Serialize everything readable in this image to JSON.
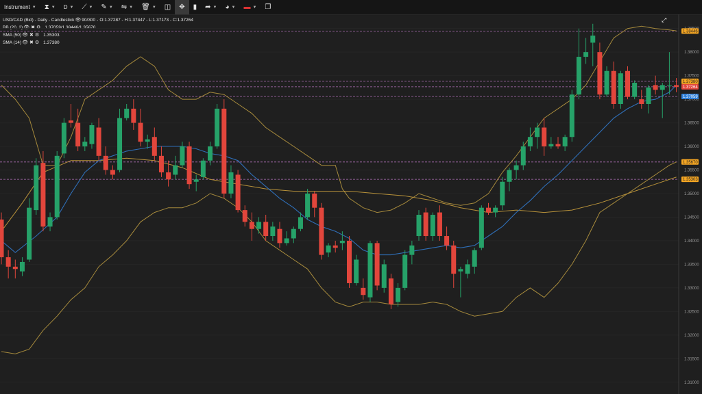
{
  "toolbar": {
    "instrument_label": "Instrument",
    "timeframe_label": "D"
  },
  "legend": {
    "title": "USD/CAD (Bid) - Daily - Candlestick",
    "bars": "90/300",
    "ohlc": "O:1.37287 - H:1.37447 - L:1.37173 - C:1.37264",
    "indicators": [
      {
        "name": "BB (20, 2)",
        "value": "1.37059/1.38446/1.35670"
      },
      {
        "name": "SMA (50)",
        "value": "1.35303"
      },
      {
        "name": "SMA (14)",
        "value": "1.37380"
      }
    ]
  },
  "colors": {
    "bull": "#26a269",
    "bear": "#e2463c",
    "bb": "#a68a3c",
    "sma50": "#b8923a",
    "sma14": "#2f6fb8",
    "hline": "#b070b8",
    "tag_orange": "#f5a623",
    "tag_red": "#e2463c",
    "tag_blue": "#2f7fd8"
  },
  "chart_data": {
    "type": "candlestick",
    "title": "USD/CAD (Bid) - Daily - Candlestick",
    "ylim": [
      1.3075,
      1.388
    ],
    "y_ticks": [
      "1.38500",
      "1.38000",
      "1.37500",
      "1.37000",
      "1.36500",
      "1.36000",
      "1.35500",
      "1.35000",
      "1.34500",
      "1.34000",
      "1.33500",
      "1.33000",
      "1.32500",
      "1.32000",
      "1.31500",
      "1.31000"
    ],
    "horizontal_lines": [
      1.38446,
      1.3738,
      1.37264,
      1.37059,
      1.3567,
      1.35303
    ],
    "price_tags": [
      {
        "label": "1.38446",
        "value": 1.38446,
        "color": "orange"
      },
      {
        "label": "1.37380",
        "value": 1.3738,
        "color": "orange"
      },
      {
        "label": "1.37264",
        "value": 1.37264,
        "color": "red"
      },
      {
        "label": "1.37059",
        "value": 1.37059,
        "color": "blue"
      },
      {
        "label": "1.35670",
        "value": 1.3567,
        "color": "orange"
      },
      {
        "label": "1.35303",
        "value": 1.35303,
        "color": "orange"
      }
    ],
    "candles": [
      [
        1.3445,
        1.346,
        1.335,
        1.3365
      ],
      [
        1.3365,
        1.338,
        1.332,
        1.3345
      ],
      [
        1.3345,
        1.336,
        1.332,
        1.334
      ],
      [
        1.3335,
        1.3365,
        1.3325,
        1.3355
      ],
      [
        1.336,
        1.349,
        1.3355,
        1.347
      ],
      [
        1.3465,
        1.3575,
        1.3455,
        1.356
      ],
      [
        1.3565,
        1.359,
        1.342,
        1.343
      ],
      [
        1.343,
        1.346,
        1.342,
        1.345
      ],
      [
        1.345,
        1.359,
        1.3445,
        1.358
      ],
      [
        1.3585,
        1.366,
        1.3575,
        1.365
      ],
      [
        1.3655,
        1.369,
        1.364,
        1.365
      ],
      [
        1.365,
        1.368,
        1.359,
        1.36
      ],
      [
        1.36,
        1.362,
        1.359,
        1.361
      ],
      [
        1.3605,
        1.365,
        1.3595,
        1.3645
      ],
      [
        1.364,
        1.366,
        1.357,
        1.358
      ],
      [
        1.358,
        1.36,
        1.354,
        1.355
      ],
      [
        1.355,
        1.356,
        1.353,
        1.354
      ],
      [
        1.355,
        1.368,
        1.3545,
        1.366
      ],
      [
        1.366,
        1.369,
        1.3655,
        1.368
      ],
      [
        1.368,
        1.37,
        1.3635,
        1.365
      ],
      [
        1.365,
        1.368,
        1.36,
        1.361
      ],
      [
        1.361,
        1.3625,
        1.3595,
        1.3615
      ],
      [
        1.362,
        1.364,
        1.357,
        1.358
      ],
      [
        1.358,
        1.36,
        1.3535,
        1.3545
      ],
      [
        1.3545,
        1.357,
        1.3515,
        1.353
      ],
      [
        1.354,
        1.358,
        1.353,
        1.356
      ],
      [
        1.356,
        1.361,
        1.3555,
        1.36
      ],
      [
        1.36,
        1.361,
        1.351,
        1.352
      ],
      [
        1.3525,
        1.354,
        1.3505,
        1.353
      ],
      [
        1.3535,
        1.3575,
        1.353,
        1.357
      ],
      [
        1.357,
        1.361,
        1.356,
        1.36
      ],
      [
        1.36,
        1.369,
        1.3595,
        1.368
      ],
      [
        1.368,
        1.37,
        1.349,
        1.35
      ],
      [
        1.35,
        1.356,
        1.349,
        1.3545
      ],
      [
        1.354,
        1.355,
        1.346,
        1.3465
      ],
      [
        1.3465,
        1.3475,
        1.343,
        1.344
      ],
      [
        1.344,
        1.346,
        1.34,
        1.3425
      ],
      [
        1.3425,
        1.345,
        1.3415,
        1.344
      ],
      [
        1.344,
        1.3455,
        1.34,
        1.341
      ],
      [
        1.341,
        1.344,
        1.34,
        1.343
      ],
      [
        1.3425,
        1.344,
        1.3385,
        1.3395
      ],
      [
        1.3395,
        1.342,
        1.339,
        1.3405
      ],
      [
        1.3405,
        1.343,
        1.3395,
        1.3425
      ],
      [
        1.3425,
        1.346,
        1.342,
        1.345
      ],
      [
        1.345,
        1.351,
        1.3445,
        1.35
      ],
      [
        1.35,
        1.3505,
        1.345,
        1.347
      ],
      [
        1.347,
        1.348,
        1.336,
        1.337
      ],
      [
        1.3375,
        1.3395,
        1.3365,
        1.339
      ],
      [
        1.339,
        1.34,
        1.3375,
        1.3385
      ],
      [
        1.3395,
        1.342,
        1.338,
        1.34
      ],
      [
        1.34,
        1.341,
        1.33,
        1.331
      ],
      [
        1.331,
        1.337,
        1.3305,
        1.336
      ],
      [
        1.33,
        1.332,
        1.3275,
        1.3285
      ],
      [
        1.328,
        1.34,
        1.327,
        1.3395
      ],
      [
        1.3395,
        1.34,
        1.3295,
        1.3305
      ],
      [
        1.33,
        1.336,
        1.329,
        1.335
      ],
      [
        1.332,
        1.333,
        1.3255,
        1.3265
      ],
      [
        1.327,
        1.331,
        1.326,
        1.33
      ],
      [
        1.33,
        1.338,
        1.3295,
        1.337
      ],
      [
        1.337,
        1.34,
        1.335,
        1.339
      ],
      [
        1.341,
        1.3465,
        1.34,
        1.3455
      ],
      [
        1.346,
        1.347,
        1.34,
        1.341
      ],
      [
        1.341,
        1.346,
        1.34,
        1.3455
      ],
      [
        1.346,
        1.3475,
        1.34,
        1.341
      ],
      [
        1.341,
        1.343,
        1.338,
        1.339
      ],
      [
        1.339,
        1.34,
        1.33,
        1.333
      ],
      [
        1.3335,
        1.3345,
        1.328,
        1.334
      ],
      [
        1.333,
        1.336,
        1.332,
        1.335
      ],
      [
        1.3345,
        1.3385,
        1.333,
        1.338
      ],
      [
        1.3385,
        1.3475,
        1.338,
        1.347
      ],
      [
        1.347,
        1.348,
        1.3455,
        1.346
      ],
      [
        1.346,
        1.3475,
        1.345,
        1.347
      ],
      [
        1.3475,
        1.3535,
        1.3465,
        1.3525
      ],
      [
        1.3525,
        1.3555,
        1.3505,
        1.355
      ],
      [
        1.355,
        1.357,
        1.353,
        1.356
      ],
      [
        1.356,
        1.361,
        1.355,
        1.36
      ],
      [
        1.36,
        1.364,
        1.359,
        1.362
      ],
      [
        1.362,
        1.365,
        1.3595,
        1.364
      ],
      [
        1.364,
        1.366,
        1.358,
        1.36
      ],
      [
        1.36,
        1.362,
        1.3595,
        1.3605
      ],
      [
        1.3605,
        1.362,
        1.3595,
        1.36
      ],
      [
        1.36,
        1.3625,
        1.359,
        1.362
      ],
      [
        1.362,
        1.372,
        1.361,
        1.371
      ],
      [
        1.371,
        1.385,
        1.37,
        1.379
      ],
      [
        1.379,
        1.383,
        1.3775,
        1.38
      ],
      [
        1.382,
        1.386,
        1.377,
        1.3835
      ],
      [
        1.38,
        1.382,
        1.37,
        1.371
      ],
      [
        1.371,
        1.377,
        1.3705,
        1.376
      ],
      [
        1.376,
        1.378,
        1.368,
        1.369
      ],
      [
        1.369,
        1.376,
        1.368,
        1.3755
      ],
      [
        1.376,
        1.377,
        1.37,
        1.3705
      ],
      [
        1.3705,
        1.374,
        1.37,
        1.3735
      ],
      [
        1.37,
        1.372,
        1.368,
        1.369
      ],
      [
        1.369,
        1.373,
        1.367,
        1.3725
      ],
      [
        1.373,
        1.375,
        1.371,
        1.372
      ],
      [
        1.372,
        1.3735,
        1.366,
        1.373
      ],
      [
        1.373,
        1.38,
        1.371,
        1.373
      ],
      [
        1.373,
        1.3745,
        1.3715,
        1.3726
      ]
    ],
    "sma14": [
      [
        0,
        1.34
      ],
      [
        2,
        1.3375
      ],
      [
        5,
        1.341
      ],
      [
        8,
        1.345
      ],
      [
        10,
        1.35
      ],
      [
        12,
        1.3545
      ],
      [
        14,
        1.357
      ],
      [
        16,
        1.358
      ],
      [
        18,
        1.359
      ],
      [
        20,
        1.3595
      ],
      [
        22,
        1.36
      ],
      [
        24,
        1.36
      ],
      [
        26,
        1.36
      ],
      [
        28,
        1.3595
      ],
      [
        30,
        1.3585
      ],
      [
        32,
        1.358
      ],
      [
        34,
        1.357
      ],
      [
        36,
        1.354
      ],
      [
        38,
        1.3515
      ],
      [
        40,
        1.349
      ],
      [
        42,
        1.347
      ],
      [
        44,
        1.3445
      ],
      [
        46,
        1.343
      ],
      [
        48,
        1.342
      ],
      [
        50,
        1.3405
      ],
      [
        52,
        1.338
      ],
      [
        54,
        1.337
      ],
      [
        56,
        1.337
      ],
      [
        58,
        1.3375
      ],
      [
        60,
        1.338
      ],
      [
        62,
        1.3385
      ],
      [
        64,
        1.339
      ],
      [
        66,
        1.3385
      ],
      [
        68,
        1.339
      ],
      [
        70,
        1.341
      ],
      [
        72,
        1.343
      ],
      [
        74,
        1.346
      ],
      [
        76,
        1.3485
      ],
      [
        78,
        1.3515
      ],
      [
        80,
        1.354
      ],
      [
        82,
        1.357
      ],
      [
        84,
        1.36
      ],
      [
        86,
        1.363
      ],
      [
        88,
        1.366
      ],
      [
        90,
        1.368
      ],
      [
        92,
        1.3695
      ],
      [
        94,
        1.37
      ],
      [
        96,
        1.3715
      ],
      [
        97,
        1.373
      ]
    ],
    "sma50": [
      [
        0,
        1.342
      ],
      [
        3,
        1.348
      ],
      [
        6,
        1.3545
      ],
      [
        10,
        1.357
      ],
      [
        14,
        1.357
      ],
      [
        18,
        1.3575
      ],
      [
        22,
        1.357
      ],
      [
        26,
        1.3555
      ],
      [
        30,
        1.353
      ],
      [
        34,
        1.352
      ],
      [
        38,
        1.351
      ],
      [
        42,
        1.3505
      ],
      [
        46,
        1.3505
      ],
      [
        50,
        1.3505
      ],
      [
        54,
        1.35
      ],
      [
        58,
        1.3495
      ],
      [
        62,
        1.3485
      ],
      [
        66,
        1.347
      ],
      [
        70,
        1.346
      ],
      [
        74,
        1.3465
      ],
      [
        78,
        1.346
      ],
      [
        82,
        1.3465
      ],
      [
        86,
        1.348
      ],
      [
        90,
        1.35
      ],
      [
        94,
        1.352
      ],
      [
        97,
        1.3535
      ]
    ],
    "bb_upper": [
      [
        0,
        1.373
      ],
      [
        2,
        1.37
      ],
      [
        4,
        1.366
      ],
      [
        6,
        1.356
      ],
      [
        8,
        1.356
      ],
      [
        10,
        1.362
      ],
      [
        12,
        1.37
      ],
      [
        14,
        1.372
      ],
      [
        16,
        1.374
      ],
      [
        18,
        1.377
      ],
      [
        20,
        1.379
      ],
      [
        22,
        1.377
      ],
      [
        24,
        1.372
      ],
      [
        26,
        1.37
      ],
      [
        28,
        1.37
      ],
      [
        30,
        1.3715
      ],
      [
        32,
        1.371
      ],
      [
        34,
        1.369
      ],
      [
        36,
        1.367
      ],
      [
        38,
        1.364
      ],
      [
        40,
        1.362
      ],
      [
        42,
        1.36
      ],
      [
        44,
        1.358
      ],
      [
        46,
        1.356
      ],
      [
        48,
        1.356
      ],
      [
        49,
        1.351
      ],
      [
        50,
        1.349
      ],
      [
        52,
        1.347
      ],
      [
        54,
        1.346
      ],
      [
        56,
        1.3465
      ],
      [
        58,
        1.348
      ],
      [
        60,
        1.35
      ],
      [
        62,
        1.349
      ],
      [
        64,
        1.348
      ],
      [
        66,
        1.3475
      ],
      [
        68,
        1.348
      ],
      [
        70,
        1.35
      ],
      [
        72,
        1.3545
      ],
      [
        74,
        1.358
      ],
      [
        76,
        1.362
      ],
      [
        78,
        1.366
      ],
      [
        80,
        1.368
      ],
      [
        82,
        1.37
      ],
      [
        84,
        1.373
      ],
      [
        86,
        1.378
      ],
      [
        88,
        1.383
      ],
      [
        90,
        1.385
      ],
      [
        92,
        1.3855
      ],
      [
        94,
        1.385
      ],
      [
        96,
        1.3847
      ],
      [
        97,
        1.3845
      ]
    ],
    "bb_lower": [
      [
        0,
        1.3165
      ],
      [
        2,
        1.316
      ],
      [
        4,
        1.317
      ],
      [
        6,
        1.321
      ],
      [
        8,
        1.324
      ],
      [
        10,
        1.3275
      ],
      [
        12,
        1.33
      ],
      [
        14,
        1.3345
      ],
      [
        16,
        1.337
      ],
      [
        18,
        1.34
      ],
      [
        20,
        1.344
      ],
      [
        22,
        1.346
      ],
      [
        24,
        1.347
      ],
      [
        26,
        1.347
      ],
      [
        28,
        1.348
      ],
      [
        30,
        1.35
      ],
      [
        32,
        1.349
      ],
      [
        34,
        1.347
      ],
      [
        36,
        1.344
      ],
      [
        38,
        1.34
      ],
      [
        40,
        1.338
      ],
      [
        42,
        1.336
      ],
      [
        44,
        1.334
      ],
      [
        46,
        1.33
      ],
      [
        48,
        1.327
      ],
      [
        50,
        1.326
      ],
      [
        52,
        1.327
      ],
      [
        54,
        1.327
      ],
      [
        56,
        1.3265
      ],
      [
        58,
        1.3265
      ],
      [
        60,
        1.3265
      ],
      [
        62,
        1.327
      ],
      [
        64,
        1.3265
      ],
      [
        66,
        1.325
      ],
      [
        68,
        1.324
      ],
      [
        70,
        1.3245
      ],
      [
        72,
        1.325
      ],
      [
        74,
        1.328
      ],
      [
        76,
        1.33
      ],
      [
        78,
        1.328
      ],
      [
        80,
        1.331
      ],
      [
        82,
        1.335
      ],
      [
        84,
        1.34
      ],
      [
        86,
        1.346
      ],
      [
        88,
        1.348
      ],
      [
        90,
        1.35
      ],
      [
        92,
        1.352
      ],
      [
        94,
        1.354
      ],
      [
        96,
        1.356
      ],
      [
        97,
        1.3567
      ]
    ]
  }
}
